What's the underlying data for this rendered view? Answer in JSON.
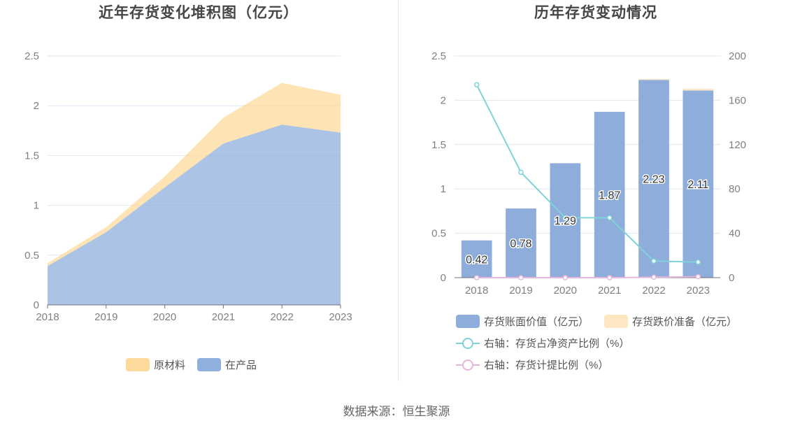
{
  "source_text": "数据来源：恒生聚源",
  "chart_data": [
    {
      "type": "area",
      "title": "近年存货变化堆积图（亿元）",
      "x": [
        "2018",
        "2019",
        "2020",
        "2021",
        "2022",
        "2023"
      ],
      "ylim": [
        0,
        2.5
      ],
      "yticks": [
        "0",
        "0.5",
        "1",
        "1.5",
        "2",
        "2.5"
      ],
      "stacked": true,
      "series": [
        {
          "name": "在产品",
          "values": [
            0.39,
            0.73,
            1.18,
            1.62,
            1.81,
            1.73
          ],
          "color": "#8fb0dd"
        },
        {
          "name": "原材料",
          "values": [
            0.03,
            0.05,
            0.11,
            0.26,
            0.42,
            0.38
          ],
          "color": "#fdd99b"
        }
      ],
      "legend": {
        "position": "bottom",
        "items": [
          "原材料",
          "在产品"
        ]
      }
    },
    {
      "type": "bar",
      "title": "历年存货变动情况",
      "x": [
        "2018",
        "2019",
        "2020",
        "2021",
        "2022",
        "2023"
      ],
      "ylim": [
        0,
        2.5
      ],
      "yticks": [
        "0",
        "0.5",
        "1",
        "1.5",
        "2",
        "2.5"
      ],
      "y2lim": [
        0,
        200
      ],
      "y2ticks": [
        "0",
        "40",
        "80",
        "120",
        "160",
        "200"
      ],
      "series": [
        {
          "name": "存货账面价值（亿元）",
          "type": "bar",
          "axis": "left",
          "values": [
            0.42,
            0.78,
            1.29,
            1.87,
            2.23,
            2.11
          ],
          "labels": [
            "0.42",
            "0.78",
            "1.29",
            "1.87",
            "2.23",
            "2.11"
          ],
          "color": "#8eaddb"
        },
        {
          "name": "存货跌价准备（亿元）",
          "type": "bar",
          "axis": "left",
          "stacked": true,
          "values": [
            0.0,
            0.0,
            0.0,
            0.0,
            0.01,
            0.02
          ],
          "color": "#fde7c2"
        },
        {
          "name": "右轴：存货占净资产比例（%）",
          "type": "line",
          "axis": "right",
          "values": [
            174,
            95,
            54,
            54,
            15,
            14
          ],
          "color": "#7fd3d8"
        },
        {
          "name": "右轴：存货计提比例（%）",
          "type": "line",
          "axis": "right",
          "values": [
            0,
            0,
            0,
            0,
            0.4,
            0.9
          ],
          "color": "#e5b6db"
        }
      ],
      "legend": {
        "position": "bottom"
      }
    }
  ]
}
